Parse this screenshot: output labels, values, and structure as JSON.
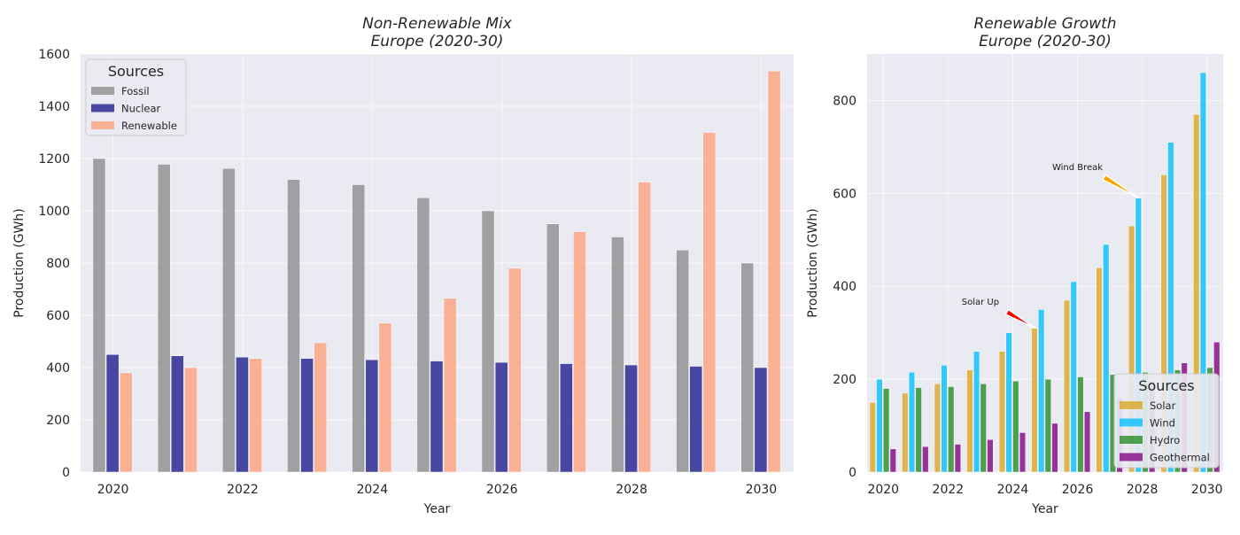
{
  "chart_data": [
    {
      "type": "bar",
      "title": "Non-Renewable Mix\nEurope (2020-30)",
      "xlabel": "Year",
      "ylabel": "Production (GWh)",
      "x": [
        2020,
        2021,
        2022,
        2023,
        2024,
        2025,
        2026,
        2027,
        2028,
        2029,
        2030
      ],
      "xticks": [
        "2020",
        "2022",
        "2024",
        "2026",
        "2028",
        "2030"
      ],
      "ylim": [
        0,
        1600
      ],
      "yticks": [
        "0",
        "200",
        "400",
        "600",
        "800",
        "1000",
        "1200",
        "1400",
        "1600"
      ],
      "grid": true,
      "legend": {
        "title": "Sources",
        "placement": "top-left"
      },
      "series": [
        {
          "name": "Fossil",
          "color": "#8c8c8c",
          "values": [
            1200,
            1178,
            1162,
            1120,
            1100,
            1050,
            1000,
            950,
            900,
            850,
            800
          ]
        },
        {
          "name": "Nuclear",
          "color": "#1a1a8c",
          "values": [
            450,
            445,
            440,
            435,
            430,
            425,
            420,
            415,
            410,
            405,
            400
          ]
        },
        {
          "name": "Renewable",
          "color": "#ffa07a",
          "values": [
            380,
            400,
            435,
            495,
            570,
            665,
            780,
            920,
            1110,
            1300,
            1535
          ]
        }
      ]
    },
    {
      "type": "bar",
      "title": "Renewable Growth\nEurope (2020-30)",
      "xlabel": "Year",
      "ylabel": "Production (GWh)",
      "x": [
        2020,
        2021,
        2022,
        2023,
        2024,
        2025,
        2026,
        2027,
        2028,
        2029,
        2030
      ],
      "xticks": [
        "2020",
        "2022",
        "2024",
        "2026",
        "2028",
        "2030"
      ],
      "ylim": [
        0,
        900
      ],
      "yticks": [
        "0",
        "200",
        "400",
        "600",
        "800"
      ],
      "grid": true,
      "legend": {
        "title": "Sources",
        "placement": "bottom-right"
      },
      "series": [
        {
          "name": "Solar",
          "color": "#daa520",
          "values": [
            150,
            170,
            190,
            220,
            260,
            310,
            370,
            440,
            530,
            640,
            770
          ]
        },
        {
          "name": "Wind",
          "color": "#00bfff",
          "values": [
            200,
            215,
            230,
            260,
            300,
            350,
            410,
            490,
            590,
            710,
            860
          ]
        },
        {
          "name": "Hydro",
          "color": "#228b22",
          "values": [
            180,
            182,
            184,
            190,
            196,
            200,
            205,
            210,
            215,
            220,
            225
          ]
        },
        {
          "name": "Geothermal",
          "color": "#800080",
          "values": [
            50,
            55,
            60,
            70,
            85,
            105,
            130,
            160,
            195,
            235,
            280
          ]
        }
      ],
      "annotations": [
        {
          "text": "Wind Break",
          "x": 2028,
          "y": 590,
          "text_x": 2026,
          "text_y": 650,
          "color": "#ffa500"
        },
        {
          "text": "Solar Up",
          "x": 2025,
          "y": 310,
          "text_x": 2023,
          "text_y": 360,
          "color": "#ff0000"
        }
      ]
    }
  ]
}
